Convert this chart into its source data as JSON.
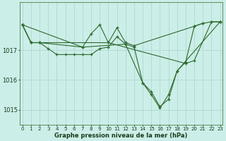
{
  "title": "Graphe pression niveau de la mer (hPa)",
  "background_color": "#cceee8",
  "grid_color": "#aad4cc",
  "line_color": "#2d6a2d",
  "x_labels": [
    "0",
    "1",
    "2",
    "3",
    "4",
    "5",
    "6",
    "7",
    "8",
    "9",
    "10",
    "11",
    "12",
    "13",
    "14",
    "15",
    "16",
    "17",
    "18",
    "19",
    "20",
    "21",
    "22",
    "23"
  ],
  "yticks": [
    1015,
    1016,
    1017
  ],
  "ylim": [
    1014.5,
    1018.6
  ],
  "xlim": [
    -0.3,
    23.3
  ],
  "series": [
    {
      "points": [
        [
          0,
          1017.85
        ],
        [
          1,
          1017.25
        ],
        [
          2,
          1017.25
        ],
        [
          3,
          1017.05
        ],
        [
          4,
          1016.85
        ],
        [
          5,
          1016.85
        ],
        [
          6,
          1016.85
        ],
        [
          7,
          1016.85
        ],
        [
          8,
          1016.85
        ],
        [
          9,
          1017.05
        ],
        [
          10,
          1017.1
        ],
        [
          11,
          1017.45
        ],
        [
          12,
          1017.2
        ],
        [
          13,
          1017.1
        ],
        [
          14,
          1015.9
        ],
        [
          15,
          1015.6
        ],
        [
          16,
          1015.1
        ],
        [
          17,
          1015.35
        ],
        [
          18,
          1016.3
        ],
        [
          19,
          1016.6
        ],
        [
          20,
          1017.8
        ],
        [
          21,
          1017.9
        ]
      ]
    },
    {
      "points": [
        [
          0,
          1017.85
        ],
        [
          1,
          1017.25
        ],
        [
          2,
          1017.25
        ],
        [
          10,
          1017.25
        ],
        [
          11,
          1017.75
        ],
        [
          12,
          1017.25
        ],
        [
          13,
          1017.15
        ],
        [
          20,
          1017.8
        ],
        [
          21,
          1017.9
        ],
        [
          22,
          1017.95
        ],
        [
          23,
          1017.95
        ]
      ]
    },
    {
      "points": [
        [
          0,
          1017.85
        ],
        [
          1,
          1017.25
        ],
        [
          2,
          1017.25
        ],
        [
          7,
          1017.1
        ],
        [
          8,
          1017.55
        ],
        [
          9,
          1017.85
        ],
        [
          10,
          1017.25
        ],
        [
          19,
          1016.55
        ],
        [
          20,
          1016.65
        ],
        [
          22,
          1017.95
        ],
        [
          23,
          1017.95
        ]
      ]
    },
    {
      "points": [
        [
          0,
          1017.85
        ],
        [
          7,
          1017.1
        ],
        [
          12,
          1017.2
        ],
        [
          14,
          1015.9
        ],
        [
          15,
          1015.5
        ],
        [
          16,
          1015.05
        ],
        [
          17,
          1015.5
        ],
        [
          18,
          1016.3
        ],
        [
          23,
          1017.95
        ]
      ]
    }
  ]
}
